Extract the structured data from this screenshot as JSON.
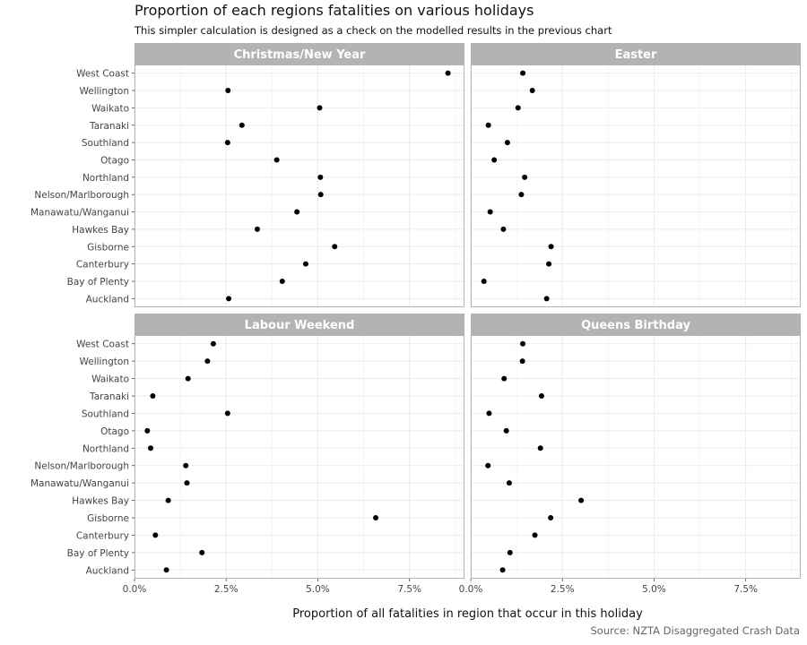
{
  "title": "Proportion of each regions fatalities on various holidays",
  "subtitle": "This simpler calculation is designed as a check on the modelled results in the previous chart",
  "caption": "Source: NZTA Disaggregated Crash Data",
  "colors": {
    "strip": "#b3b3b3",
    "panel_border": "#b3b3b3",
    "grid": "#ebebeb",
    "point": "#000000"
  },
  "chart_data": {
    "type": "scatter",
    "xlabel": "Proportion of all fatalities in region that occur in this holiday",
    "ylabel": "",
    "xlim": [
      0,
      0.09
    ],
    "x_ticks": [
      0,
      0.025,
      0.05,
      0.075
    ],
    "x_tick_labels": [
      "0.0%",
      "2.5%",
      "5.0%",
      "7.5%"
    ],
    "grid": true,
    "categories": [
      "West Coast",
      "Wellington",
      "Waikato",
      "Taranaki",
      "Southland",
      "Otago",
      "Northland",
      "Nelson/Marlborough",
      "Manawatu/Wanganui",
      "Hawkes Bay",
      "Gisborne",
      "Canterbury",
      "Bay of Plenty",
      "Auckland"
    ],
    "facets": [
      {
        "name": "Christmas/New Year",
        "values": [
          0.0855,
          0.0255,
          0.0505,
          0.0293,
          0.0254,
          0.0388,
          0.0507,
          0.0508,
          0.0443,
          0.0335,
          0.0546,
          0.0467,
          0.0403,
          0.0257
        ]
      },
      {
        "name": "Easter",
        "values": [
          0.0142,
          0.0168,
          0.0129,
          0.0048,
          0.01,
          0.0064,
          0.0147,
          0.0138,
          0.0053,
          0.0089,
          0.0219,
          0.0213,
          0.0036,
          0.0207
        ]
      },
      {
        "name": "Labour Weekend",
        "values": [
          0.0215,
          0.0199,
          0.0146,
          0.005,
          0.0254,
          0.0035,
          0.0044,
          0.014,
          0.0143,
          0.0092,
          0.0658,
          0.0057,
          0.0184,
          0.0087
        ]
      },
      {
        "name": "Queens Birthday",
        "values": [
          0.0142,
          0.0141,
          0.0091,
          0.0193,
          0.005,
          0.0097,
          0.019,
          0.0047,
          0.0105,
          0.0301,
          0.0218,
          0.0175,
          0.0107,
          0.0087
        ]
      }
    ]
  }
}
